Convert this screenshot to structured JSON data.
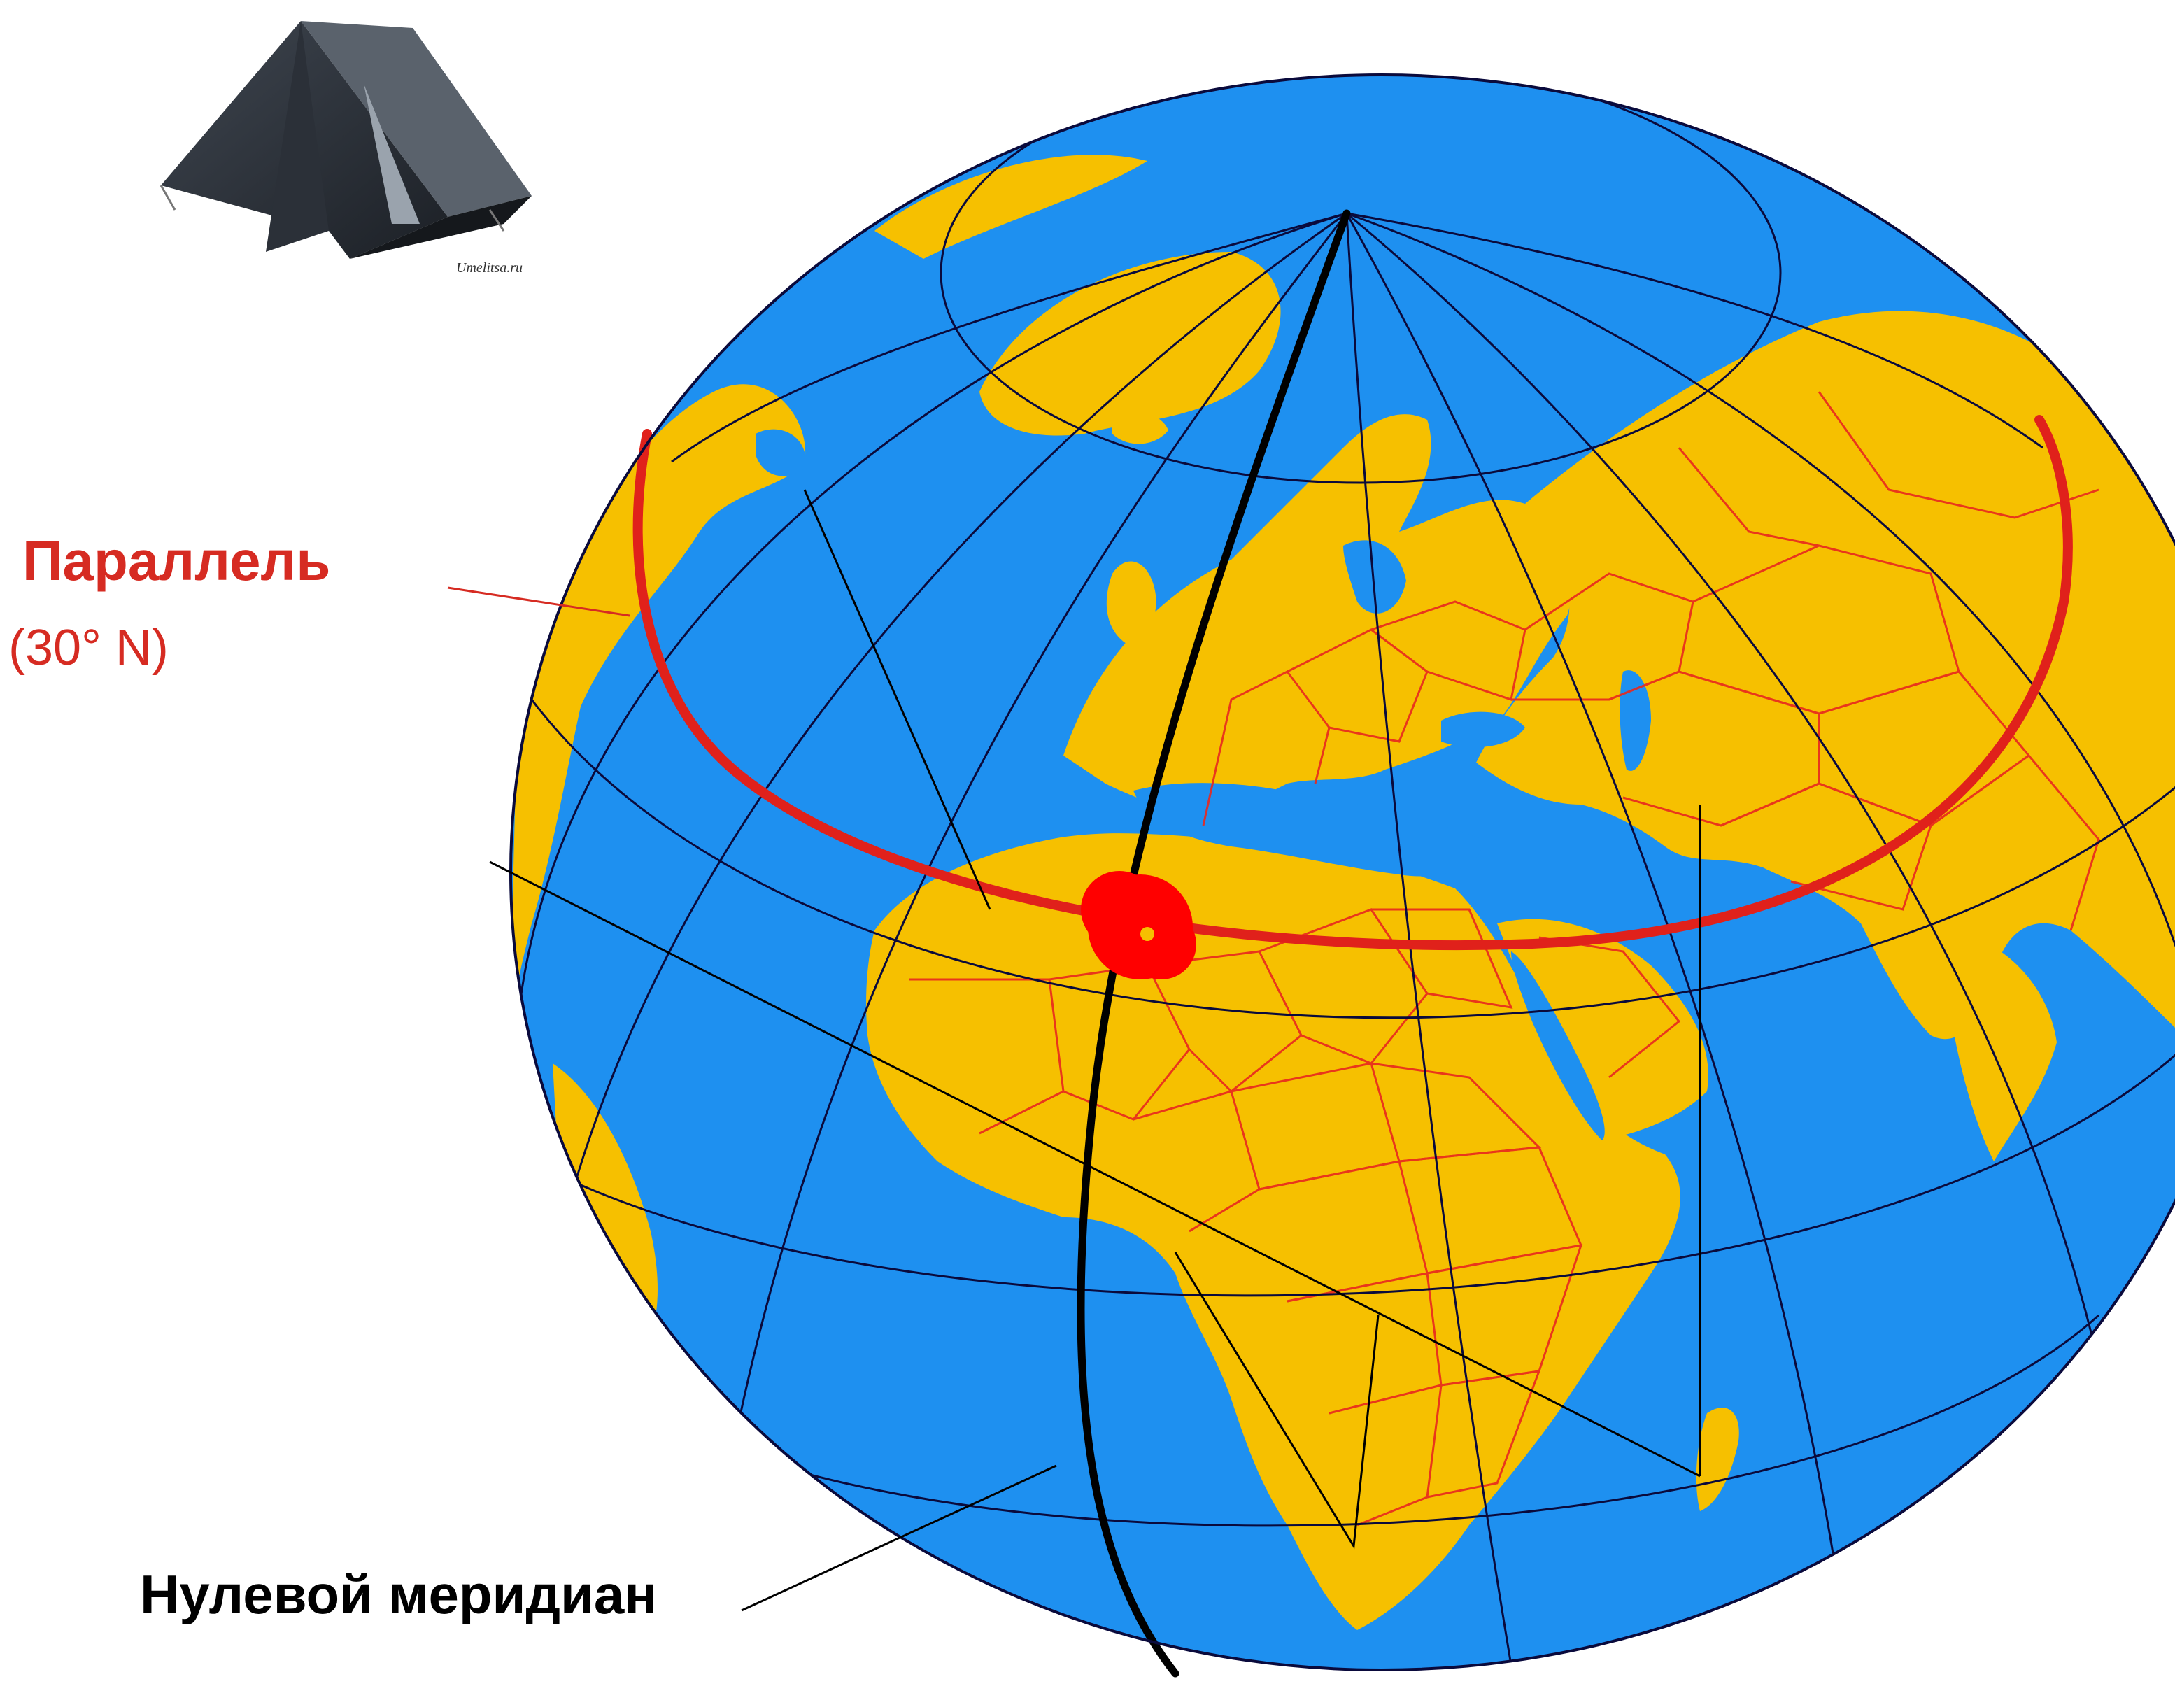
{
  "labels": {
    "parallel": "Параллель",
    "latitude": "(30° N)",
    "prime_meridian": "Нулевой меридиан"
  },
  "watermark": "Umelitsa.ru",
  "icons": {
    "tent": "tent-icon",
    "marker": "location-marker"
  },
  "colors": {
    "ocean": "#1e90f0",
    "land": "#f6c000",
    "borders": "#e8281e",
    "parallel_line": "#e0211b",
    "grid": "#0a0a3c",
    "prime_meridian": "#000000",
    "marker": "#ff0000",
    "label_red": "#d62b22",
    "label_dark": "#000000"
  }
}
